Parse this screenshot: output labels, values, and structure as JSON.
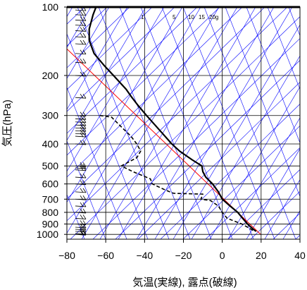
{
  "chart_data": {
    "type": "line",
    "xlabel": "気温(実線), 露点(破線)",
    "ylabel": "気圧(hPa)",
    "xlim": [
      -80,
      40
    ],
    "ylim": [
      1050,
      100
    ],
    "y_scale": "log",
    "x_ticks": [
      "−80",
      "−60",
      "−40",
      "−20",
      "0",
      "20",
      "40"
    ],
    "x_tick_values": [
      -80,
      -60,
      -40,
      -20,
      0,
      20,
      40
    ],
    "y_ticks": [
      "100",
      "200",
      "300",
      "400",
      "500",
      "600",
      "700",
      "800",
      "900",
      "1000"
    ],
    "y_tick_values": [
      100,
      200,
      300,
      400,
      500,
      600,
      700,
      800,
      900,
      1000
    ],
    "mixing_ratio_labels": [
      "1",
      "5",
      "10",
      "15",
      "20g"
    ],
    "colors": {
      "isotherm_lines": "#0000ff",
      "reference_line": "#ff0000",
      "profile": "#000000",
      "wind_barbs": "#000000"
    },
    "series": [
      {
        "style": "solid",
        "points": [
          {
            "p": 100,
            "t": -65.0
          },
          {
            "p": 108,
            "t": -66.5
          },
          {
            "p": 125,
            "t": -68.5
          },
          {
            "p": 140,
            "t": -68.5
          },
          {
            "p": 160,
            "t": -66.0
          },
          {
            "p": 180,
            "t": -61.0
          },
          {
            "p": 200,
            "t": -56.0
          },
          {
            "p": 230,
            "t": -49.5
          },
          {
            "p": 250,
            "t": -46.5
          },
          {
            "p": 270,
            "t": -43.5
          },
          {
            "p": 300,
            "t": -39.0
          },
          {
            "p": 350,
            "t": -32.0
          },
          {
            "p": 400,
            "t": -26.0
          },
          {
            "p": 430,
            "t": -22.0
          },
          {
            "p": 470,
            "t": -15.5
          },
          {
            "p": 500,
            "t": -10.5
          },
          {
            "p": 530,
            "t": -10.0
          },
          {
            "p": 560,
            "t": -8.5
          },
          {
            "p": 600,
            "t": -5.0
          },
          {
            "p": 650,
            "t": -2.0
          },
          {
            "p": 700,
            "t": 0.0
          },
          {
            "p": 750,
            "t": 4.0
          },
          {
            "p": 800,
            "t": 8.0
          },
          {
            "p": 850,
            "t": 10.5
          },
          {
            "p": 900,
            "t": 13.0
          },
          {
            "p": 950,
            "t": 16.0
          },
          {
            "p": 970,
            "t": 17.5
          }
        ]
      },
      {
        "style": "dashed",
        "points": [
          {
            "p": 300,
            "t": -63.0
          },
          {
            "p": 305,
            "t": -57.0
          },
          {
            "p": 330,
            "t": -53.0
          },
          {
            "p": 370,
            "t": -47.0
          },
          {
            "p": 400,
            "t": -44.0
          },
          {
            "p": 430,
            "t": -42.0
          },
          {
            "p": 460,
            "t": -44.0
          },
          {
            "p": 500,
            "t": -52.0
          },
          {
            "p": 530,
            "t": -46.0
          },
          {
            "p": 570,
            "t": -37.0
          },
          {
            "p": 600,
            "t": -36.0
          },
          {
            "p": 640,
            "t": -29.0
          },
          {
            "p": 660,
            "t": -25.0
          },
          {
            "p": 665,
            "t": -10.0
          },
          {
            "p": 700,
            "t": -11.0
          },
          {
            "p": 710,
            "t": -6.0
          },
          {
            "p": 750,
            "t": -2.0
          },
          {
            "p": 800,
            "t": 0.0
          },
          {
            "p": 850,
            "t": 2.5
          },
          {
            "p": 900,
            "t": 10.0
          },
          {
            "p": 940,
            "t": 14.0
          },
          {
            "p": 970,
            "t": 16.5
          }
        ]
      }
    ],
    "wind_barb_pressures": [
      103,
      108,
      114,
      120,
      127,
      135,
      145,
      160,
      175,
      200,
      250,
      300,
      310,
      320,
      330,
      340,
      350,
      360,
      370,
      400,
      500,
      510,
      520,
      560,
      600,
      650,
      700,
      750,
      800,
      850,
      900,
      930,
      950,
      970,
      990,
      1000
    ]
  }
}
